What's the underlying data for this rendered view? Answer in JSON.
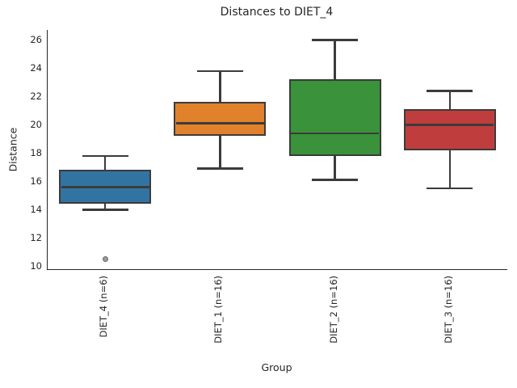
{
  "chart_data": {
    "type": "boxplot",
    "title": "Distances to DIET_4",
    "xlabel": "Group",
    "ylabel": "Distance",
    "ylim": [
      9.8,
      26.71
    ],
    "yticks": [
      26,
      24,
      22,
      20,
      18,
      16,
      14,
      12,
      10
    ],
    "grid": false,
    "legend": null,
    "categories": [
      "DIET_4 (n=6)",
      "DIET_1 (n=16)",
      "DIET_2 (n=16)",
      "DIET_3 (n=16)"
    ],
    "series": [
      {
        "name": "DIET_4 (n=6)",
        "color": "#3274A1",
        "whisker_low": 14.0,
        "q1": 14.4,
        "median": 15.6,
        "q3": 16.8,
        "whisker_high": 17.8,
        "outliers": [
          10.5
        ]
      },
      {
        "name": "DIET_1 (n=16)",
        "color": "#E1812C",
        "whisker_low": 16.9,
        "q1": 19.2,
        "median": 20.1,
        "q3": 21.6,
        "whisker_high": 23.8,
        "outliers": []
      },
      {
        "name": "DIET_2 (n=16)",
        "color": "#3A923A",
        "whisker_low": 16.1,
        "q1": 17.8,
        "median": 19.4,
        "q3": 23.2,
        "whisker_high": 26.0,
        "outliers": []
      },
      {
        "name": "DIET_3 (n=16)",
        "color": "#C03D3E",
        "whisker_low": 15.5,
        "q1": 18.2,
        "median": 20.0,
        "q3": 21.1,
        "whisker_high": 22.4,
        "outliers": []
      }
    ],
    "colors": {
      "line": "#3B3B3B",
      "text": "#262626",
      "background": "#FFFFFF",
      "flier_fill": "#9A9A9A",
      "flier_edge": "#6B6B6B"
    }
  }
}
